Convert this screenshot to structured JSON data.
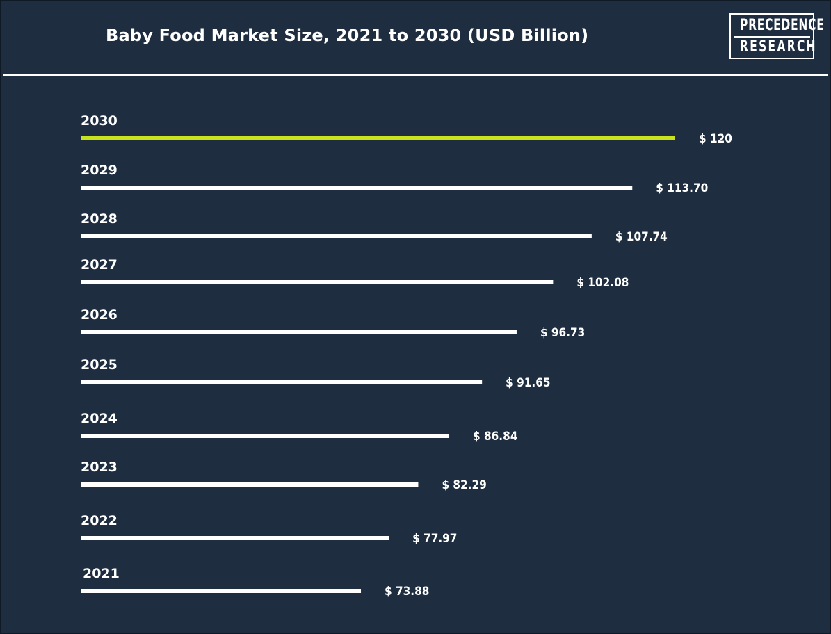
{
  "logo": {
    "line1": "PRECEDENCE",
    "line2": "RESEARCH"
  },
  "chart_data": {
    "type": "bar",
    "orientation": "horizontal",
    "title": "Baby Food Market Size, 2021 to 2030 (USD Billion)",
    "xlabel": "",
    "ylabel": "",
    "grid": false,
    "categories": [
      "2030",
      "2029",
      "2028",
      "2027",
      "2026",
      "2025",
      "2024",
      "2023",
      "2022",
      "2021"
    ],
    "values": [
      120,
      113.7,
      107.74,
      102.08,
      96.73,
      91.65,
      86.84,
      82.29,
      77.97,
      73.88
    ],
    "value_labels": [
      "$ 120",
      "$ 113.70",
      "$ 107.74",
      "$ 102.08",
      "$ 96.73",
      "$ 91.65",
      "$ 86.84",
      "$ 82.29",
      "$ 77.97",
      "$ 73.88"
    ],
    "highlight_category": "2030",
    "colors": {
      "background": "#1e2d3f",
      "bar": "#ffffff",
      "highlight": "#c8e31e",
      "text": "#ffffff"
    }
  }
}
